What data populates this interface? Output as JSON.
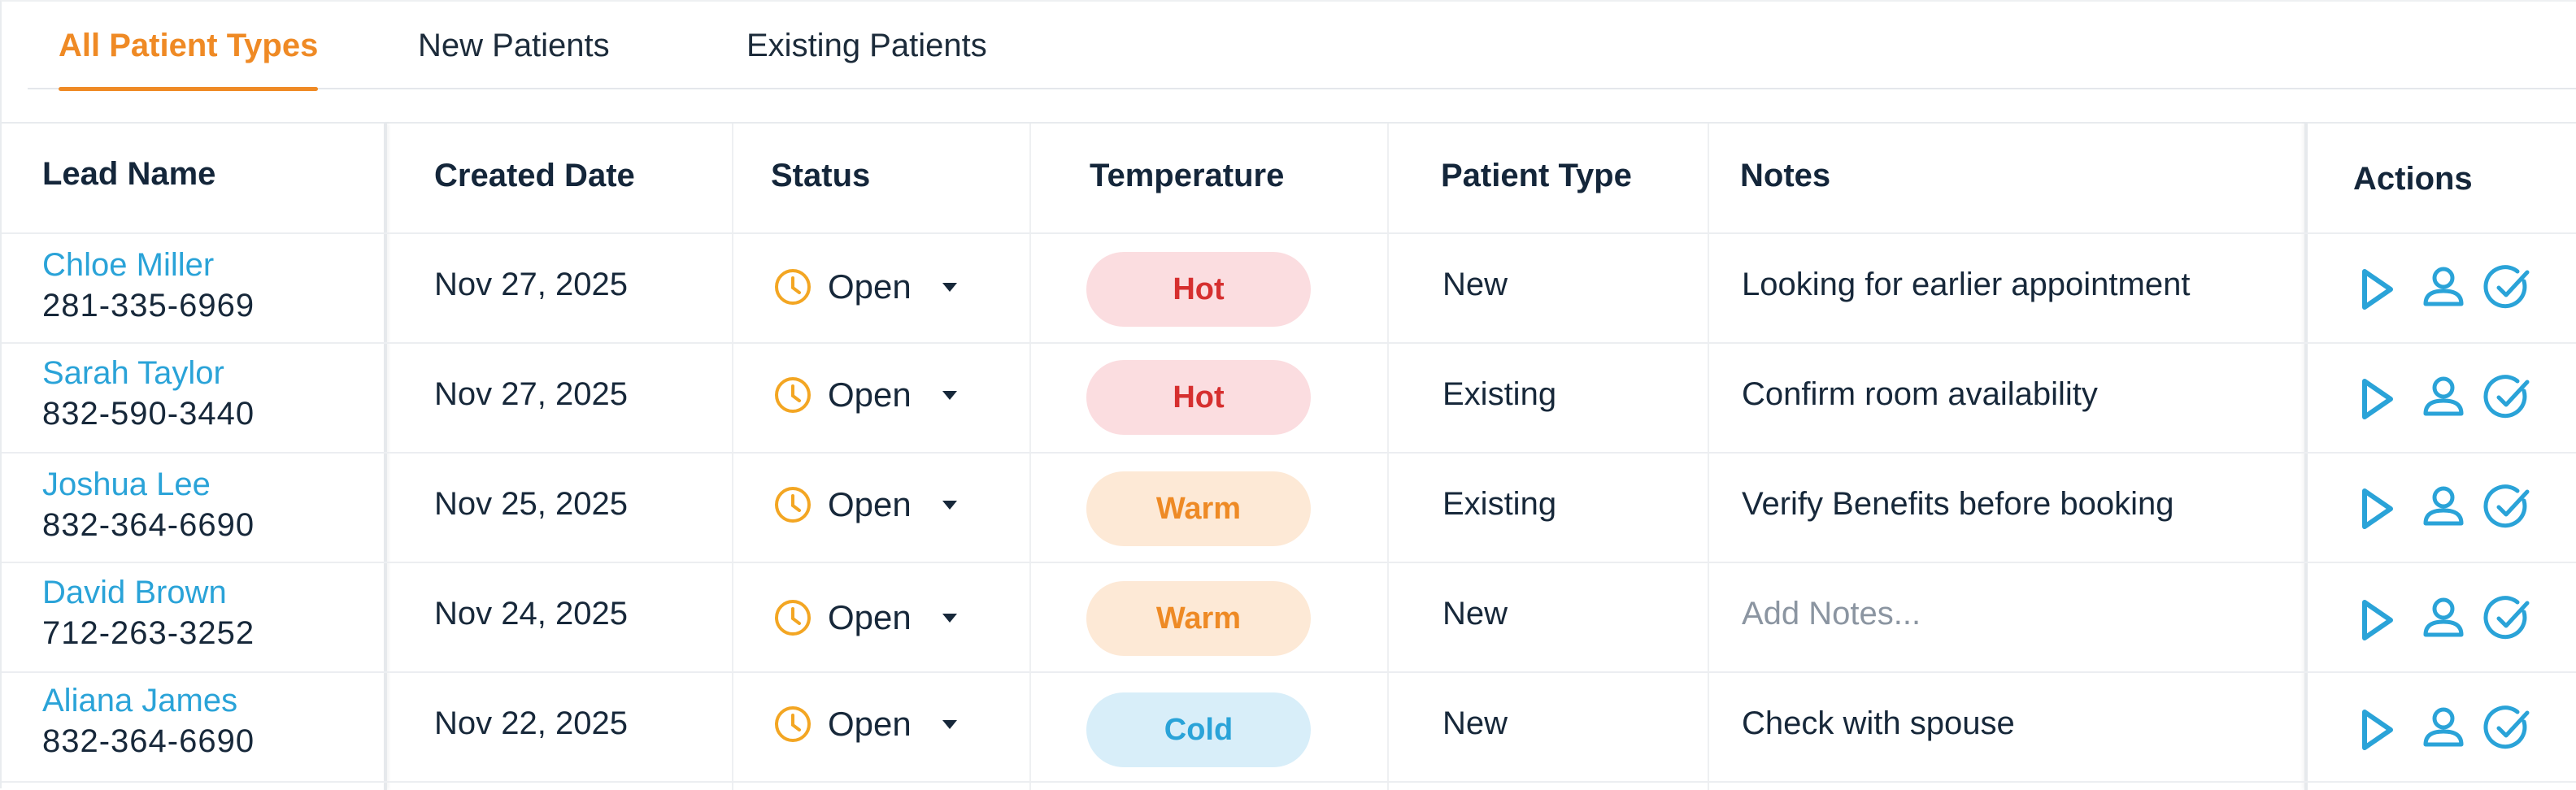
{
  "tabs": [
    {
      "label": "All Patient Types",
      "active": true
    },
    {
      "label": "New Patients",
      "active": false
    },
    {
      "label": "Existing Patients",
      "active": false
    }
  ],
  "columns": {
    "lead_name": "Lead Name",
    "created_date": "Created Date",
    "status": "Status",
    "temperature": "Temperature",
    "patient_type": "Patient Type",
    "notes": "Notes",
    "actions": "Actions"
  },
  "rows": [
    {
      "name": "Chloe Miller",
      "phone": "281-335-6969",
      "created": "Nov 27, 2025",
      "status": "Open",
      "temperature": "Hot",
      "patient_type": "New",
      "notes": "Looking for earlier appointment"
    },
    {
      "name": "Sarah Taylor",
      "phone": "832-590-3440",
      "created": "Nov 27, 2025",
      "status": "Open",
      "temperature": "Hot",
      "patient_type": "Existing",
      "notes": "Confirm room availability"
    },
    {
      "name": "Joshua Lee",
      "phone": "832-364-6690",
      "created": "Nov 25, 2025",
      "status": "Open",
      "temperature": "Warm",
      "patient_type": "Existing",
      "notes": "Verify Benefits before booking"
    },
    {
      "name": "David Brown",
      "phone": "712-263-3252",
      "created": "Nov 24, 2025",
      "status": "Open",
      "temperature": "Warm",
      "patient_type": "New",
      "notes": "",
      "notes_placeholder": "Add Notes..."
    },
    {
      "name": "Aliana James",
      "phone": "832-364-6690",
      "created": "Nov 22, 2025",
      "status": "Open",
      "temperature": "Cold",
      "patient_type": "New",
      "notes": "Check with spouse"
    }
  ],
  "icons": {
    "status": "clock-icon",
    "status_dropdown": "caret-down-icon",
    "actions": [
      "play-icon",
      "user-icon",
      "check-circle-icon"
    ]
  },
  "colors": {
    "accent": "#ef8a25",
    "link": "#2aa3d8",
    "status_icon": "#f3a623",
    "hot_bg": "#fbdde0",
    "hot_text": "#d62f2f",
    "warm_bg": "#fde9d6",
    "warm_text": "#ee8a25",
    "cold_bg": "#d8eef9",
    "cold_text": "#2aa3d8"
  }
}
